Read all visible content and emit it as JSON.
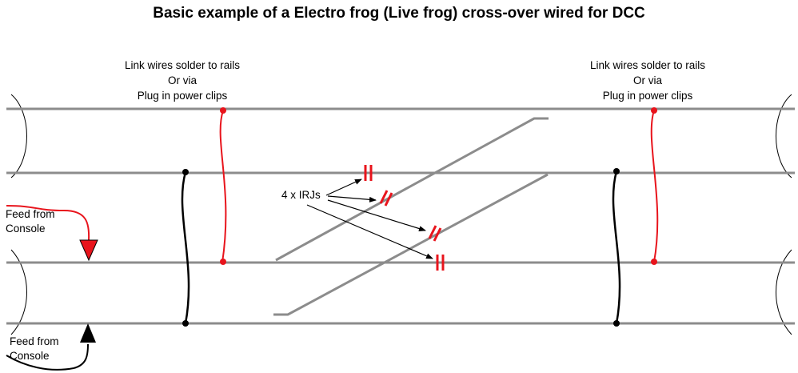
{
  "title": "Basic example of a Electro frog (Live frog) cross-over wired for DCC",
  "link_note_left": {
    "line1": "Link wires solder to rails",
    "line2": "Or via",
    "line3": "Plug in power clips"
  },
  "link_note_right": {
    "line1": "Link wires solder to rails",
    "line2": "Or via",
    "line3": "Plug in power clips"
  },
  "feed_top": {
    "line1": "Feed from",
    "line2": "Console"
  },
  "feed_bottom": {
    "line1": "Feed from",
    "line2": "Console"
  },
  "irj_label": "4 x IRJs",
  "colors": {
    "rail": "#8c8c8c",
    "red_wire": "#e8141c",
    "black_wire": "#000000",
    "text": "#000000"
  }
}
